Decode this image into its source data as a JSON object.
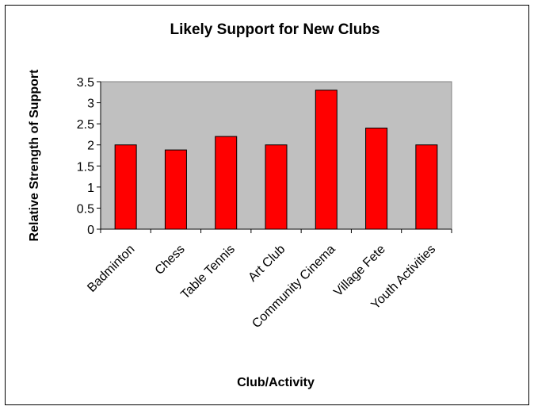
{
  "chart_data": {
    "type": "bar",
    "title": "Likely Support for New Clubs",
    "xlabel": "Club/Activity",
    "ylabel": "Relative Strength of Support",
    "categories": [
      "Badminton",
      "Chess",
      "Table Tennis",
      "Art Club",
      "Community Cinema",
      "Village Fete",
      "Youth Activities"
    ],
    "values": [
      2.0,
      1.88,
      2.2,
      2.0,
      3.3,
      2.4,
      2.0
    ],
    "ylim": [
      0,
      3.5
    ],
    "yticks": [
      "0",
      "0.5",
      "1",
      "1.5",
      "2",
      "2.5",
      "3",
      "3.5"
    ],
    "grid": false,
    "legend": "none",
    "colors": {
      "bar_fill": "#ff0000",
      "bar_stroke": "#000000",
      "plot_background": "#c0c0c0"
    }
  }
}
